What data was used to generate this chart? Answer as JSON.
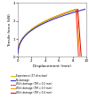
{
  "title": "",
  "xlabel": "Displacement (mm)",
  "ylabel": "Tensile force (kN)",
  "xlim": [
    0,
    10
  ],
  "ylim": [
    0,
    3
  ],
  "yticks": [
    0,
    1,
    2,
    3
  ],
  "xticks": [
    0,
    2,
    4,
    6,
    8,
    10
  ],
  "legend_entries": [
    {
      "label": "Experience (ZT direction)",
      "color": "#cccc00",
      "lw": 0.8
    },
    {
      "label": "No-damage",
      "color": "#3333cc",
      "lw": 0.8
    },
    {
      "label": "With-damage (TM = 0.2 mm)",
      "color": "#ff3333",
      "lw": 0.7
    },
    {
      "label": "With-damage (TM = 0.3 mm)",
      "color": "#ff9900",
      "lw": 0.7
    },
    {
      "label": "With-damage (TM = 0.4 mm)",
      "color": "#cc0000",
      "lw": 0.7
    }
  ],
  "bg_color": "#ffffff",
  "font_size": 3.2,
  "tick_font_size": 2.8,
  "label_font_size": 3.2,
  "legend_font_size": 2.0
}
